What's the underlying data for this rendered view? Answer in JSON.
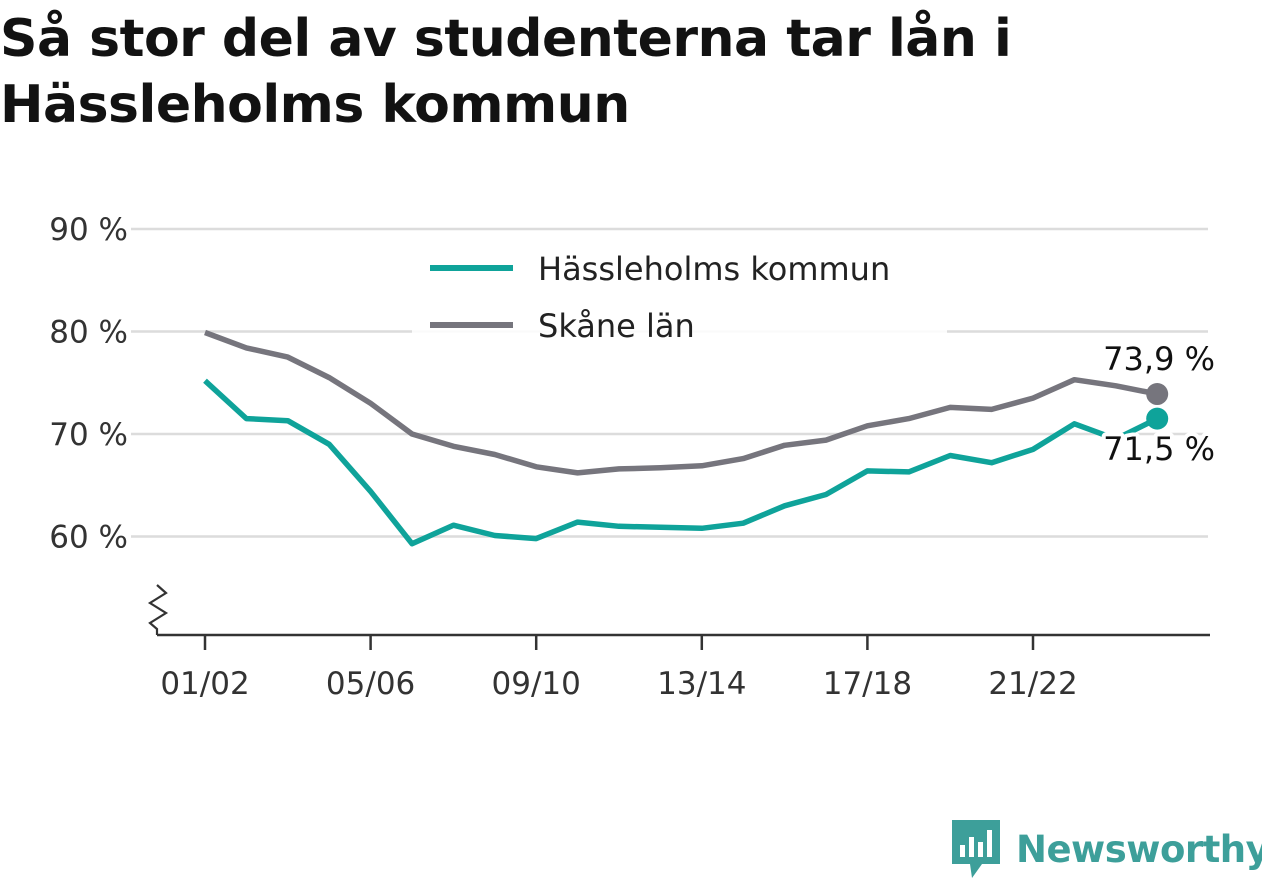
{
  "chart_data": {
    "type": "line",
    "title": "Så stor del av studenterna tar lån i Hässleholms kommun",
    "x": [
      "01/02",
      "02/03",
      "03/04",
      "04/05",
      "05/06",
      "06/07",
      "07/08",
      "08/09",
      "09/10",
      "10/11",
      "11/12",
      "12/13",
      "13/14",
      "14/15",
      "15/16",
      "16/17",
      "17/18",
      "18/19",
      "19/20",
      "20/21",
      "21/22",
      "22/23",
      "23/24",
      "24/25"
    ],
    "x_tick_labels": [
      "01/02",
      "05/06",
      "09/10",
      "13/14",
      "17/18",
      "21/22"
    ],
    "y_tick_labels": [
      "90 %",
      "80 %",
      "70 %",
      "60 %"
    ],
    "y_ticks": [
      90,
      80,
      70,
      60
    ],
    "ylim": [
      50,
      90
    ],
    "grid": true,
    "legend": "top-center",
    "series": [
      {
        "name": "Hässleholms kommun",
        "color": "#0fa39a",
        "values": [
          75.2,
          71.5,
          71.3,
          69.0,
          64.4,
          59.3,
          61.1,
          60.1,
          59.8,
          61.4,
          61.0,
          60.9,
          60.8,
          61.3,
          63.0,
          64.1,
          66.4,
          66.3,
          67.9,
          67.2,
          68.5,
          71.0,
          69.5,
          71.5
        ],
        "end_label": "71,5 %"
      },
      {
        "name": "Skåne län",
        "color": "#76757d",
        "values": [
          79.9,
          78.4,
          77.5,
          75.5,
          73.0,
          70.0,
          68.8,
          68.0,
          66.8,
          66.2,
          66.6,
          66.7,
          66.9,
          67.6,
          68.9,
          69.4,
          70.8,
          71.5,
          72.6,
          72.4,
          73.5,
          75.3,
          74.7,
          73.9
        ],
        "end_label": "73,9 %"
      }
    ]
  },
  "brand": {
    "name": "Newsworthy",
    "icon": "newsworthy-logo-icon",
    "color": "#3d9f9a"
  }
}
